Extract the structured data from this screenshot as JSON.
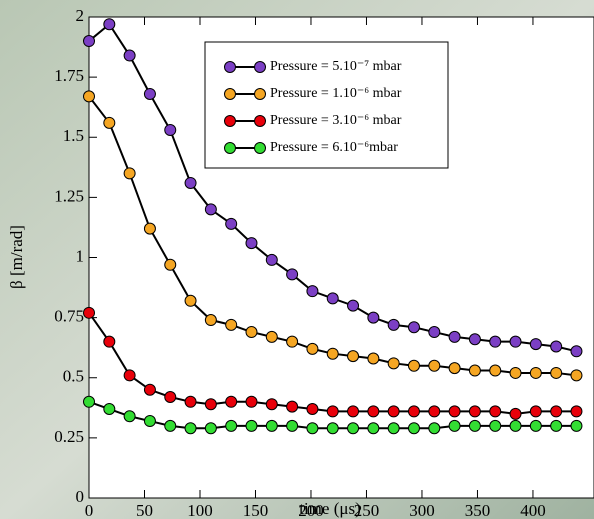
{
  "chart_data": {
    "type": "line",
    "x_label": "time (μs)",
    "y_label": "β [m/rad]",
    "x": [
      0,
      18.3,
      36.6,
      54.9,
      73.2,
      91.5,
      109.8,
      128.1,
      146.4,
      164.7,
      183,
      201.3,
      219.6,
      237.9,
      256.2,
      274.5,
      292.8,
      311.1,
      329.4,
      347.7,
      366,
      384.3,
      402.6,
      420.9,
      439.2
    ],
    "series": [
      {
        "name": "Pressure = 5.10⁻⁷ mbar",
        "color": "#7b3fc4",
        "values": [
          1.9,
          1.97,
          1.84,
          1.68,
          1.53,
          1.31,
          1.2,
          1.14,
          1.06,
          0.99,
          0.93,
          0.86,
          0.83,
          0.8,
          0.75,
          0.72,
          0.71,
          0.69,
          0.67,
          0.66,
          0.65,
          0.65,
          0.64,
          0.63,
          0.61
        ]
      },
      {
        "name": "Pressure = 1.10⁻⁶ mbar",
        "color": "#f5a623",
        "values": [
          1.67,
          1.56,
          1.35,
          1.12,
          0.97,
          0.82,
          0.74,
          0.72,
          0.69,
          0.67,
          0.65,
          0.62,
          0.6,
          0.59,
          0.58,
          0.56,
          0.55,
          0.55,
          0.54,
          0.53,
          0.53,
          0.52,
          0.52,
          0.52,
          0.51
        ]
      },
      {
        "name": "Pressure = 3.10⁻⁶ mbar",
        "color": "#e8000a",
        "values": [
          0.77,
          0.65,
          0.51,
          0.45,
          0.42,
          0.4,
          0.39,
          0.4,
          0.4,
          0.39,
          0.38,
          0.37,
          0.36,
          0.36,
          0.36,
          0.36,
          0.36,
          0.36,
          0.36,
          0.36,
          0.36,
          0.35,
          0.36,
          0.36,
          0.36
        ]
      },
      {
        "name": "Pressure = 6.10⁻⁶mbar",
        "color": "#33dd33",
        "values": [
          0.4,
          0.37,
          0.34,
          0.32,
          0.3,
          0.29,
          0.29,
          0.3,
          0.3,
          0.3,
          0.3,
          0.29,
          0.29,
          0.29,
          0.29,
          0.29,
          0.29,
          0.29,
          0.3,
          0.3,
          0.3,
          0.3,
          0.3,
          0.3,
          0.3
        ]
      }
    ],
    "xlim": [
      0,
      455
    ],
    "ylim": [
      0,
      2
    ],
    "xticks": [
      0,
      50,
      100,
      150,
      200,
      250,
      300,
      350,
      400
    ],
    "yticks": [
      0,
      0.25,
      0.5,
      0.75,
      1,
      1.25,
      1.5,
      1.75,
      2
    ],
    "legend": "upper-center"
  }
}
